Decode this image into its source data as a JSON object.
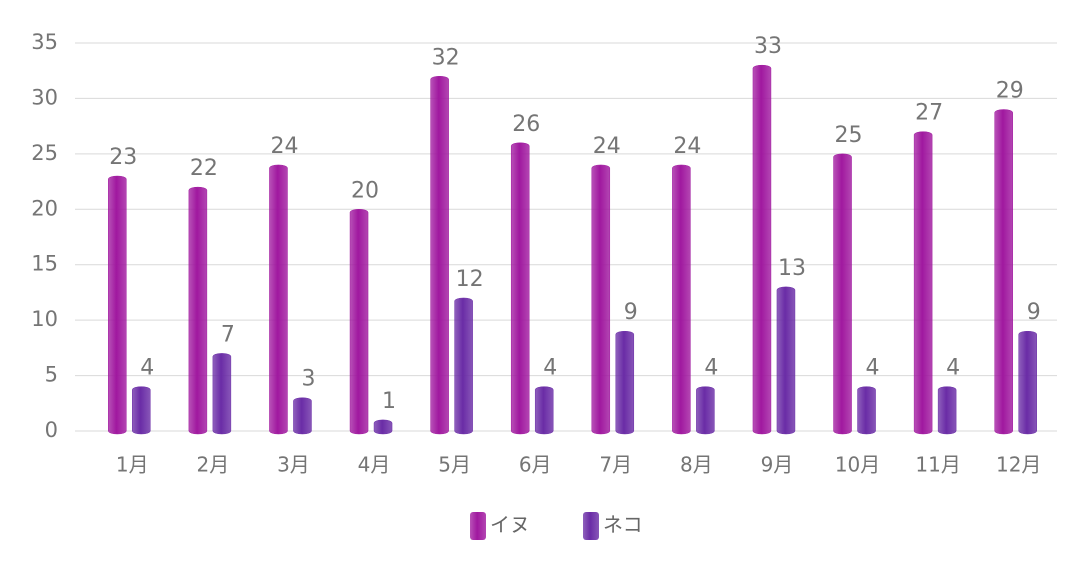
{
  "chart_data": {
    "type": "bar",
    "categories": [
      "1月",
      "2月",
      "3月",
      "4月",
      "5月",
      "6月",
      "7月",
      "8月",
      "9月",
      "10月",
      "11月",
      "12月"
    ],
    "series": [
      {
        "name": "イヌ",
        "color": "#a0189f",
        "values": [
          23,
          22,
          24,
          20,
          32,
          26,
          24,
          24,
          33,
          25,
          27,
          29
        ]
      },
      {
        "name": "ネコ",
        "color": "#6a2ca6",
        "values": [
          4,
          7,
          3,
          1,
          12,
          4,
          9,
          4,
          13,
          4,
          4,
          9
        ]
      }
    ],
    "ylim": [
      0,
      35
    ],
    "yticks": [
      0,
      5,
      10,
      15,
      20,
      25,
      30,
      35
    ],
    "grid": true,
    "legend": "bottom"
  }
}
